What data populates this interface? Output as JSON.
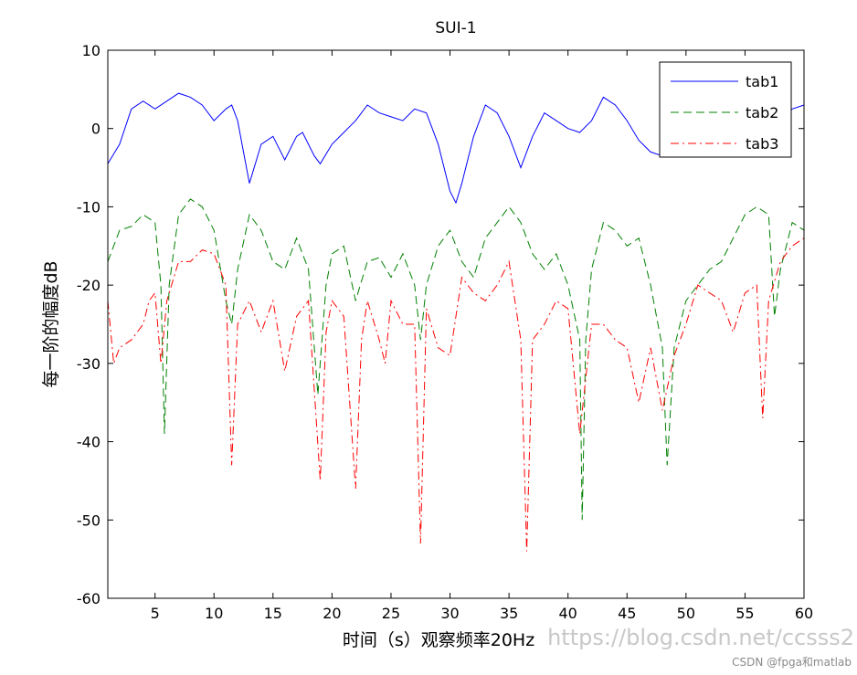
{
  "chart_data": {
    "type": "line",
    "title": "SUI-1",
    "xlabel": "时间（s）观察频率20Hz",
    "ylabel": "每一阶的幅度dB",
    "xlim": [
      1,
      60
    ],
    "ylim": [
      -60,
      10
    ],
    "xticks": [
      5,
      10,
      15,
      20,
      25,
      30,
      35,
      40,
      45,
      50,
      55,
      60
    ],
    "yticks": [
      10,
      0,
      -10,
      -20,
      -30,
      -40,
      -50,
      -60
    ],
    "grid": false,
    "legend_position": "top-right",
    "series": [
      {
        "name": "tab1",
        "color": "#0000ff",
        "style": "solid",
        "points": [
          [
            1,
            -4.5
          ],
          [
            2,
            -2
          ],
          [
            3,
            2.5
          ],
          [
            4,
            3.5
          ],
          [
            5,
            2.5
          ],
          [
            6,
            3.5
          ],
          [
            7,
            4.5
          ],
          [
            8,
            4
          ],
          [
            9,
            3
          ],
          [
            10,
            1
          ],
          [
            11,
            2.5
          ],
          [
            11.5,
            3
          ],
          [
            12,
            1
          ],
          [
            12.5,
            -3
          ],
          [
            13,
            -7
          ],
          [
            14,
            -2
          ],
          [
            15,
            -1
          ],
          [
            16,
            -4
          ],
          [
            17,
            -1
          ],
          [
            17.5,
            -0.5
          ],
          [
            18.5,
            -3.5
          ],
          [
            19,
            -4.5
          ],
          [
            20,
            -2
          ],
          [
            21,
            -0.5
          ],
          [
            22,
            1
          ],
          [
            23,
            3
          ],
          [
            24,
            2
          ],
          [
            25,
            1.5
          ],
          [
            26,
            1
          ],
          [
            27,
            2.5
          ],
          [
            28,
            2
          ],
          [
            29,
            -2
          ],
          [
            30,
            -8
          ],
          [
            30.5,
            -9.5
          ],
          [
            31,
            -7
          ],
          [
            32,
            -1
          ],
          [
            33,
            3
          ],
          [
            34,
            2
          ],
          [
            35,
            -1
          ],
          [
            36,
            -5
          ],
          [
            37,
            -1
          ],
          [
            38,
            2
          ],
          [
            39,
            1
          ],
          [
            40,
            0
          ],
          [
            41,
            -0.5
          ],
          [
            42,
            1
          ],
          [
            43,
            4
          ],
          [
            44,
            3
          ],
          [
            45,
            1
          ],
          [
            46,
            -1.5
          ],
          [
            47,
            -3
          ],
          [
            48,
            -3.5
          ],
          [
            49,
            -2
          ],
          [
            50,
            0
          ],
          [
            51,
            -0.5
          ],
          [
            52,
            0
          ],
          [
            53,
            -1
          ],
          [
            54,
            -2
          ],
          [
            55,
            -1
          ],
          [
            56,
            1
          ],
          [
            57,
            2
          ],
          [
            58,
            1
          ],
          [
            59,
            2.5
          ],
          [
            60,
            3
          ]
        ]
      },
      {
        "name": "tab2",
        "color": "#008000",
        "style": "dashed",
        "points": [
          [
            1,
            -17
          ],
          [
            2,
            -13
          ],
          [
            3,
            -12.5
          ],
          [
            4,
            -11
          ],
          [
            5,
            -12
          ],
          [
            5.5,
            -20
          ],
          [
            5.8,
            -39
          ],
          [
            6.2,
            -20
          ],
          [
            7,
            -11
          ],
          [
            8,
            -9
          ],
          [
            9,
            -10
          ],
          [
            10,
            -13
          ],
          [
            11,
            -22
          ],
          [
            11.5,
            -25
          ],
          [
            12,
            -18
          ],
          [
            13,
            -11
          ],
          [
            14,
            -13
          ],
          [
            15,
            -17
          ],
          [
            16,
            -18
          ],
          [
            17,
            -14
          ],
          [
            18,
            -18
          ],
          [
            18.8,
            -34
          ],
          [
            19.5,
            -20
          ],
          [
            20,
            -16
          ],
          [
            21,
            -15
          ],
          [
            22,
            -22
          ],
          [
            23,
            -17
          ],
          [
            24,
            -16.5
          ],
          [
            25,
            -19
          ],
          [
            26,
            -16
          ],
          [
            27,
            -20
          ],
          [
            27.5,
            -27
          ],
          [
            28,
            -20
          ],
          [
            29,
            -15
          ],
          [
            30,
            -13
          ],
          [
            31,
            -17
          ],
          [
            32,
            -19
          ],
          [
            33,
            -14
          ],
          [
            34,
            -12
          ],
          [
            35,
            -10
          ],
          [
            36,
            -12
          ],
          [
            37,
            -16
          ],
          [
            38,
            -18
          ],
          [
            39,
            -16
          ],
          [
            40,
            -20
          ],
          [
            41,
            -27
          ],
          [
            41.2,
            -50
          ],
          [
            41.5,
            -27
          ],
          [
            42,
            -18
          ],
          [
            43,
            -12
          ],
          [
            44,
            -13
          ],
          [
            45,
            -15
          ],
          [
            46,
            -14
          ],
          [
            47,
            -20
          ],
          [
            48,
            -28
          ],
          [
            48.4,
            -43
          ],
          [
            49,
            -28
          ],
          [
            50,
            -22
          ],
          [
            51,
            -20
          ],
          [
            52,
            -18
          ],
          [
            53,
            -17
          ],
          [
            54,
            -14
          ],
          [
            55,
            -11
          ],
          [
            56,
            -10
          ],
          [
            57,
            -11
          ],
          [
            57.5,
            -24
          ],
          [
            58,
            -18
          ],
          [
            59,
            -12
          ],
          [
            60,
            -13
          ]
        ]
      },
      {
        "name": "tab3",
        "color": "#ff0000",
        "style": "dashdot",
        "points": [
          [
            1,
            -22
          ],
          [
            1.5,
            -30
          ],
          [
            2,
            -28
          ],
          [
            3,
            -27
          ],
          [
            4,
            -25
          ],
          [
            4.5,
            -22
          ],
          [
            5,
            -21
          ],
          [
            5.5,
            -30
          ],
          [
            6,
            -22
          ],
          [
            7,
            -17
          ],
          [
            8,
            -17
          ],
          [
            9,
            -15.5
          ],
          [
            10,
            -16
          ],
          [
            11,
            -20
          ],
          [
            11.5,
            -43
          ],
          [
            12,
            -25
          ],
          [
            13,
            -22
          ],
          [
            14,
            -26
          ],
          [
            15,
            -22
          ],
          [
            16,
            -31
          ],
          [
            17,
            -24
          ],
          [
            18,
            -22
          ],
          [
            19,
            -45
          ],
          [
            19.5,
            -26
          ],
          [
            20,
            -22
          ],
          [
            21,
            -24
          ],
          [
            22,
            -46
          ],
          [
            22.5,
            -27
          ],
          [
            23,
            -22
          ],
          [
            24,
            -27
          ],
          [
            24.5,
            -30
          ],
          [
            25,
            -22
          ],
          [
            26,
            -25
          ],
          [
            27,
            -25
          ],
          [
            27.5,
            -53
          ],
          [
            28,
            -23
          ],
          [
            29,
            -28
          ],
          [
            30,
            -29
          ],
          [
            31,
            -19
          ],
          [
            32,
            -21
          ],
          [
            33,
            -22
          ],
          [
            34,
            -20
          ],
          [
            35,
            -17
          ],
          [
            36,
            -27
          ],
          [
            36.5,
            -54
          ],
          [
            37,
            -27
          ],
          [
            38,
            -25
          ],
          [
            39,
            -22
          ],
          [
            40,
            -23
          ],
          [
            41,
            -39
          ],
          [
            42,
            -25
          ],
          [
            43,
            -25
          ],
          [
            44,
            -27
          ],
          [
            45,
            -28
          ],
          [
            46,
            -35
          ],
          [
            47,
            -28
          ],
          [
            48,
            -36
          ],
          [
            49,
            -29
          ],
          [
            50,
            -25
          ],
          [
            51,
            -20
          ],
          [
            52,
            -21
          ],
          [
            53,
            -22
          ],
          [
            54,
            -26
          ],
          [
            55,
            -21
          ],
          [
            56,
            -20
          ],
          [
            56.5,
            -37
          ],
          [
            57,
            -22
          ],
          [
            58,
            -17
          ],
          [
            59,
            -15
          ],
          [
            60,
            -14
          ]
        ]
      }
    ]
  },
  "watermark": "https://blog.csdn.net/ccsss2",
  "credit": "CSDN @fpga和matlab"
}
